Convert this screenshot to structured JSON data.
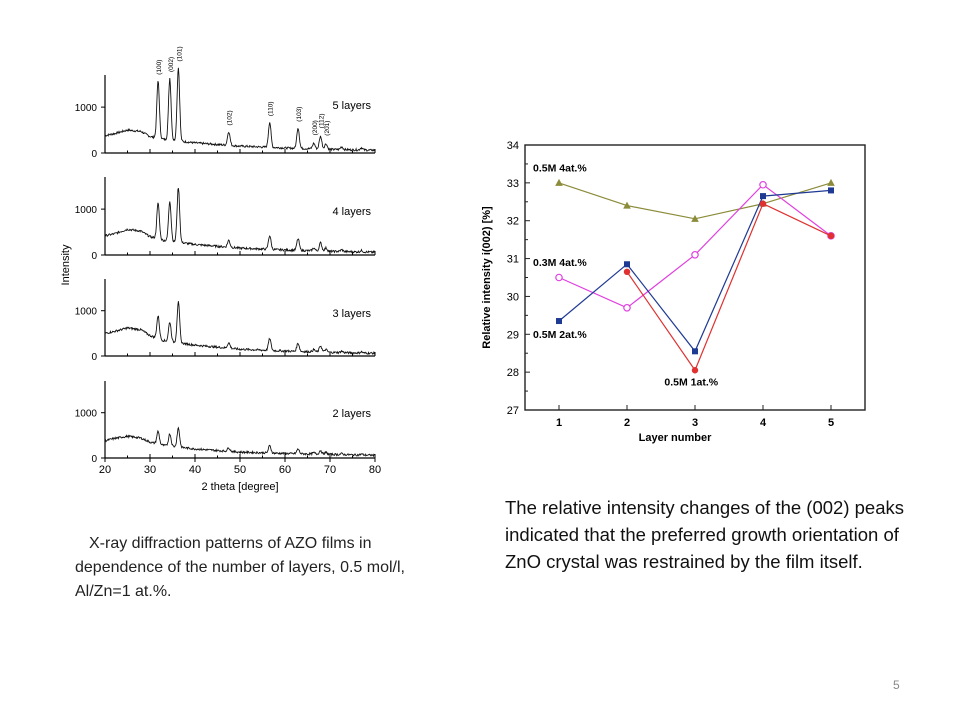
{
  "slide": {
    "caption_left": "X-ray diffraction patterns of AZO films in dependence of the number of layers, 0.5 mol/l, Al/Zn=1 at.%.",
    "caption_right": "The relative intensity changes of the (002) peaks indicated that the preferred growth orientation of ZnO crystal was restrained by the film itself.",
    "page_number": "5"
  },
  "chart_data": [
    {
      "type": "line",
      "xlabel": "2 theta [degree]",
      "ylabel": "Intensity",
      "xlim": [
        20,
        80
      ],
      "xticks": [
        20,
        30,
        40,
        50,
        60,
        70,
        80
      ],
      "panel_yticks": [
        "0",
        "1000"
      ],
      "peak_labels": [
        {
          "label": "(100)",
          "x": 31.8
        },
        {
          "label": "(002)",
          "x": 34.4
        },
        {
          "label": "(101)",
          "x": 36.3
        },
        {
          "label": "(102)",
          "x": 47.5
        },
        {
          "label": "(110)",
          "x": 56.6
        },
        {
          "label": "(103)",
          "x": 62.9
        },
        {
          "label": "(200)",
          "x": 66.4
        },
        {
          "label": "(112)",
          "x": 67.9
        },
        {
          "label": "(201)",
          "x": 69.1
        }
      ],
      "series": [
        {
          "name": "5 layers",
          "panel_ylim": [
            0,
            1700
          ],
          "background": [
            [
              20,
              380
            ],
            [
              22,
              420
            ],
            [
              25,
              500
            ],
            [
              28,
              470
            ],
            [
              30,
              360
            ],
            [
              33,
              300
            ],
            [
              40,
              220
            ],
            [
              50,
              150
            ],
            [
              60,
              110
            ],
            [
              70,
              80
            ],
            [
              80,
              60
            ]
          ],
          "peaks": [
            [
              31.8,
              1250
            ],
            [
              34.4,
              1350
            ],
            [
              36.3,
              1600
            ],
            [
              47.5,
              300
            ],
            [
              56.6,
              550
            ],
            [
              62.9,
              450
            ],
            [
              66.4,
              120
            ],
            [
              67.9,
              280
            ],
            [
              69.1,
              120
            ],
            [
              72.6,
              60
            ],
            [
              77,
              50
            ]
          ]
        },
        {
          "name": "4 layers",
          "panel_ylim": [
            0,
            1700
          ],
          "background": [
            [
              20,
              420
            ],
            [
              22,
              460
            ],
            [
              25,
              560
            ],
            [
              28,
              520
            ],
            [
              30,
              400
            ],
            [
              33,
              320
            ],
            [
              40,
              230
            ],
            [
              50,
              150
            ],
            [
              60,
              110
            ],
            [
              70,
              80
            ],
            [
              80,
              60
            ]
          ],
          "peaks": [
            [
              31.8,
              780
            ],
            [
              34.4,
              880
            ],
            [
              36.3,
              1200
            ],
            [
              47.5,
              150
            ],
            [
              56.6,
              300
            ],
            [
              62.9,
              250
            ],
            [
              66.4,
              60
            ],
            [
              67.9,
              180
            ],
            [
              69.1,
              70
            ],
            [
              72.6,
              40
            ],
            [
              77,
              30
            ]
          ]
        },
        {
          "name": "3 layers",
          "panel_ylim": [
            0,
            1700
          ],
          "background": [
            [
              20,
              500
            ],
            [
              22,
              540
            ],
            [
              25,
              620
            ],
            [
              28,
              580
            ],
            [
              30,
              450
            ],
            [
              33,
              340
            ],
            [
              40,
              240
            ],
            [
              50,
              150
            ],
            [
              60,
              110
            ],
            [
              70,
              80
            ],
            [
              80,
              60
            ]
          ],
          "peaks": [
            [
              31.8,
              500
            ],
            [
              34.4,
              430
            ],
            [
              36.3,
              900
            ],
            [
              47.5,
              120
            ],
            [
              56.6,
              260
            ],
            [
              62.9,
              180
            ],
            [
              66.4,
              50
            ],
            [
              67.9,
              140
            ],
            [
              69.1,
              60
            ],
            [
              72.6,
              30
            ],
            [
              77,
              25
            ]
          ]
        },
        {
          "name": "2 layers",
          "panel_ylim": [
            0,
            1700
          ],
          "background": [
            [
              20,
              380
            ],
            [
              22,
              430
            ],
            [
              25,
              480
            ],
            [
              28,
              440
            ],
            [
              30,
              350
            ],
            [
              33,
              280
            ],
            [
              40,
              200
            ],
            [
              50,
              130
            ],
            [
              60,
              100
            ],
            [
              70,
              80
            ],
            [
              80,
              60
            ]
          ],
          "peaks": [
            [
              31.8,
              280
            ],
            [
              34.4,
              270
            ],
            [
              36.3,
              420
            ],
            [
              47.5,
              80
            ],
            [
              56.6,
              160
            ],
            [
              62.9,
              100
            ],
            [
              66.4,
              30
            ],
            [
              67.9,
              80
            ],
            [
              69.1,
              40
            ],
            [
              72.6,
              20
            ],
            [
              77,
              20
            ]
          ]
        }
      ]
    },
    {
      "type": "line",
      "xlabel": "Layer number",
      "ylabel": "Relative intensity i(002) [%]",
      "xlim": [
        0.5,
        5.5
      ],
      "ylim": [
        27,
        34
      ],
      "xticks": [
        1,
        2,
        3,
        4,
        5
      ],
      "yticks": [
        27,
        28,
        29,
        30,
        31,
        32,
        33,
        34
      ],
      "x": [
        1,
        2,
        3,
        4,
        5
      ],
      "series": [
        {
          "name": "0.5M 4at.%",
          "color": "#8b8b3a",
          "marker": "triangle",
          "values": [
            33.0,
            32.4,
            32.05,
            32.45,
            33.0
          ]
        },
        {
          "name": "0.3M 4at.%",
          "color": "#e040e0",
          "marker": "circle-open",
          "values": [
            30.5,
            29.7,
            31.1,
            32.95,
            31.6
          ]
        },
        {
          "name": "0.5M 2at.%",
          "color": "#1f3a93",
          "marker": "square",
          "values": [
            29.35,
            30.85,
            28.55,
            32.65,
            32.8
          ]
        },
        {
          "name": "0.5M 1at.%",
          "color": "#e03030",
          "marker": "circle",
          "values": [
            null,
            30.65,
            28.05,
            32.45,
            31.6
          ]
        }
      ]
    }
  ]
}
